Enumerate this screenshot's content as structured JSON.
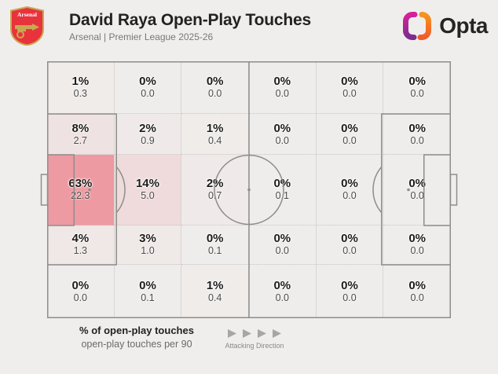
{
  "header": {
    "title": "David Raya Open-Play Touches",
    "subtitle": "Arsenal | Premier League 2025-26",
    "crest_label": "Arsenal",
    "brand_label": "Opta"
  },
  "legend": {
    "primary": "% of open-play touches",
    "secondary": "open-play touches per 90",
    "attacking_direction": "Attacking Direction"
  },
  "colors": {
    "background": "#f0eeec",
    "heat_base": "#efedeb",
    "heat_max": "#ee9aa2",
    "pitch_line": "#8f8d8b",
    "arsenal_red": "#e8333c",
    "crest_gold": "#c8a951",
    "opta_magenta": "#d6219c",
    "opta_purple": "#7b2d8e",
    "opta_orange_light": "#f7941d",
    "opta_orange_dark": "#f15a29",
    "arrow_gray": "#a8a6a4"
  },
  "chart_data": {
    "type": "heatmap",
    "title": "David Raya Open-Play Touches",
    "subtitle": "Arsenal | Premier League 2025-26",
    "rows": 5,
    "cols": 6,
    "value_primary_label": "% of open-play touches",
    "value_secondary_label": "open-play touches per 90",
    "heat_scale": {
      "min_pct": 0,
      "max_pct": 63,
      "from": "#efedeb",
      "to": "#ee9aa2"
    },
    "cells": [
      [
        {
          "pct": 1,
          "per90": "0.3"
        },
        {
          "pct": 0,
          "per90": "0.0"
        },
        {
          "pct": 0,
          "per90": "0.0"
        },
        {
          "pct": 0,
          "per90": "0.0"
        },
        {
          "pct": 0,
          "per90": "0.0"
        },
        {
          "pct": 0,
          "per90": "0.0"
        }
      ],
      [
        {
          "pct": 8,
          "per90": "2.7"
        },
        {
          "pct": 2,
          "per90": "0.9"
        },
        {
          "pct": 1,
          "per90": "0.4"
        },
        {
          "pct": 0,
          "per90": "0.0"
        },
        {
          "pct": 0,
          "per90": "0.0"
        },
        {
          "pct": 0,
          "per90": "0.0"
        }
      ],
      [
        {
          "pct": 63,
          "per90": "22.3"
        },
        {
          "pct": 14,
          "per90": "5.0"
        },
        {
          "pct": 2,
          "per90": "0.7"
        },
        {
          "pct": 0,
          "per90": "0.1"
        },
        {
          "pct": 0,
          "per90": "0.0"
        },
        {
          "pct": 0,
          "per90": "0.0"
        }
      ],
      [
        {
          "pct": 4,
          "per90": "1.3"
        },
        {
          "pct": 3,
          "per90": "1.0"
        },
        {
          "pct": 0,
          "per90": "0.1"
        },
        {
          "pct": 0,
          "per90": "0.0"
        },
        {
          "pct": 0,
          "per90": "0.0"
        },
        {
          "pct": 0,
          "per90": "0.0"
        }
      ],
      [
        {
          "pct": 0,
          "per90": "0.0"
        },
        {
          "pct": 0,
          "per90": "0.1"
        },
        {
          "pct": 1,
          "per90": "0.4"
        },
        {
          "pct": 0,
          "per90": "0.0"
        },
        {
          "pct": 0,
          "per90": "0.0"
        },
        {
          "pct": 0,
          "per90": "0.0"
        }
      ]
    ],
    "attacking_direction": "left-to-right",
    "arrow_count": 4
  }
}
